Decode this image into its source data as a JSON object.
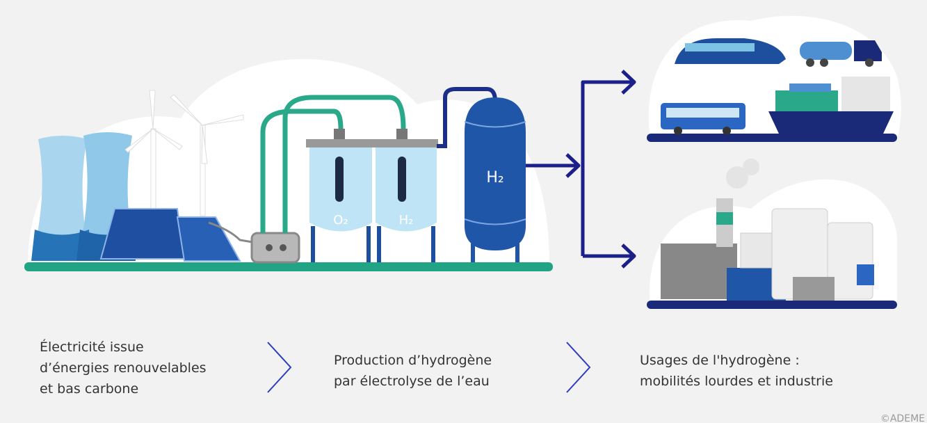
{
  "steps": [
    {
      "lines": [
        "Électricité issue",
        "d’énergies renouvelables",
        "et bas carbone"
      ]
    },
    {
      "lines": [
        "Production d’hydrogène",
        "par électrolyse de l’eau"
      ]
    },
    {
      "lines": [
        "Usages de l'hydrogène :",
        "mobilités lourdes et industrie"
      ]
    }
  ],
  "labels": {
    "cell_left": "O₂",
    "cell_right": "H₂",
    "tank": "H₂"
  },
  "credit": "©ADEME"
}
